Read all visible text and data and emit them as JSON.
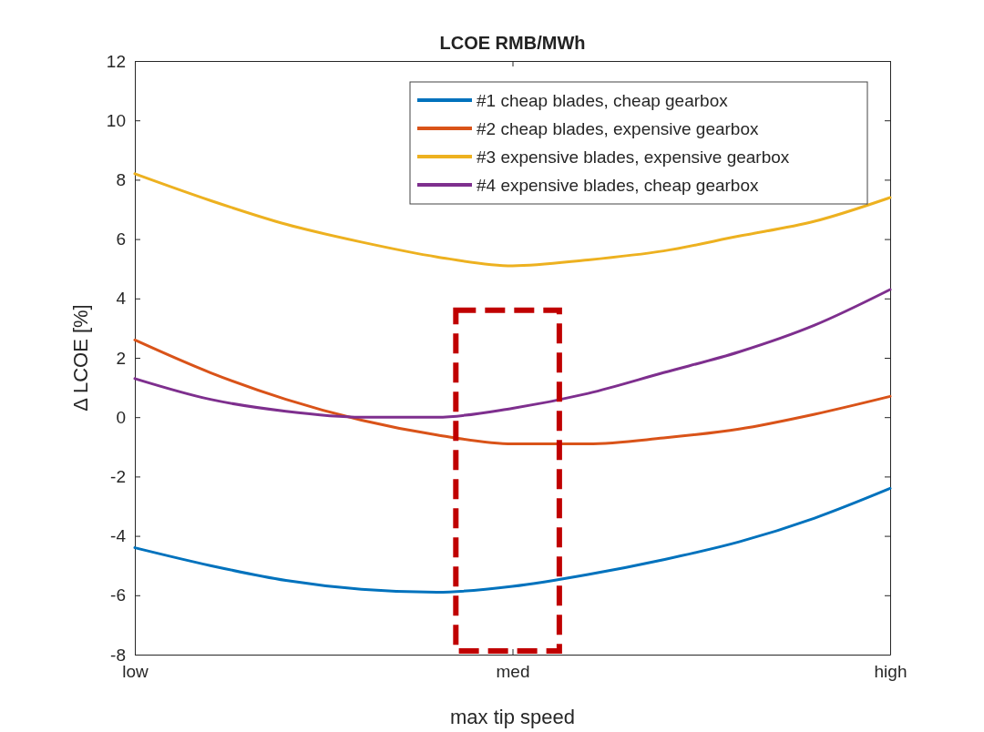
{
  "chart_data": {
    "type": "line",
    "title": "LCOE RMB/MWh",
    "xlabel": "max tip speed",
    "ylabel": "Δ LCOE [%]",
    "categories": [
      "low",
      null,
      null,
      null,
      null,
      "med",
      null,
      null,
      null,
      null,
      "high"
    ],
    "ylim": [
      -8,
      12
    ],
    "yticks": [
      -8,
      -6,
      -4,
      -2,
      0,
      2,
      4,
      6,
      8,
      10,
      12
    ],
    "legend": "top right",
    "grid": false,
    "series": [
      {
        "name": "#1 cheap blades, cheap gearbox",
        "color": "#0072bd",
        "values": [
          -4.4,
          -5.0,
          -5.5,
          -5.8,
          -5.9,
          -5.7,
          -5.3,
          -4.8,
          -4.2,
          -3.4,
          -2.4
        ]
      },
      {
        "name": "#2 cheap blades, expensive gearbox",
        "color": "#d95319",
        "values": [
          2.6,
          1.5,
          0.6,
          -0.1,
          -0.6,
          -0.9,
          -0.9,
          -0.7,
          -0.4,
          0.1,
          0.7
        ]
      },
      {
        "name": "#3 expensive blades, expensive gearbox",
        "color": "#edb120",
        "values": [
          8.2,
          7.3,
          6.5,
          5.9,
          5.4,
          5.1,
          5.3,
          5.6,
          6.1,
          6.6,
          7.4
        ]
      },
      {
        "name": "#4 expensive blades, cheap gearbox",
        "color": "#7e2f8e",
        "values": [
          1.3,
          0.6,
          0.2,
          0.0,
          0.0,
          0.3,
          0.8,
          1.5,
          2.2,
          3.1,
          4.3
        ]
      }
    ]
  }
}
